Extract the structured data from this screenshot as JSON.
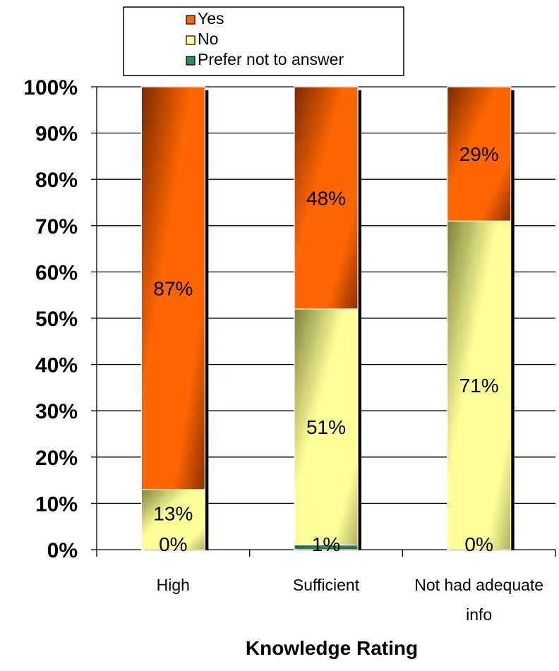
{
  "chart_data": {
    "type": "bar",
    "stacked": true,
    "percent": true,
    "categories": [
      "High",
      "Sufficient",
      "Not had adequate info"
    ],
    "category_lines": [
      [
        "High"
      ],
      [
        "Sufficient"
      ],
      [
        "Not had adequate",
        "info"
      ]
    ],
    "series": [
      {
        "name": "Prefer not to answer",
        "values": [
          0,
          1,
          0
        ],
        "labels": [
          "0%",
          "1%",
          "0%"
        ],
        "color": "#2e8b57"
      },
      {
        "name": "No",
        "values": [
          13,
          51,
          71
        ],
        "labels": [
          "13%",
          "51%",
          "71%"
        ],
        "color": "#ffff99"
      },
      {
        "name": "Yes",
        "values": [
          87,
          48,
          29
        ],
        "labels": [
          "87%",
          "48%",
          "29%"
        ],
        "color": "#ff6600"
      }
    ],
    "legend_order": [
      "Yes",
      "No",
      "Prefer not to answer"
    ],
    "legend_placement": "top",
    "xlabel": "Knowledge Rating",
    "ylabel": "",
    "ylim": [
      0,
      100
    ],
    "yticks": [
      0,
      10,
      20,
      30,
      40,
      50,
      60,
      70,
      80,
      90,
      100
    ],
    "ytick_labels": [
      "0%",
      "10%",
      "20%",
      "30%",
      "40%",
      "50%",
      "60%",
      "70%",
      "80%",
      "90%",
      "100%"
    ],
    "grid": true
  }
}
